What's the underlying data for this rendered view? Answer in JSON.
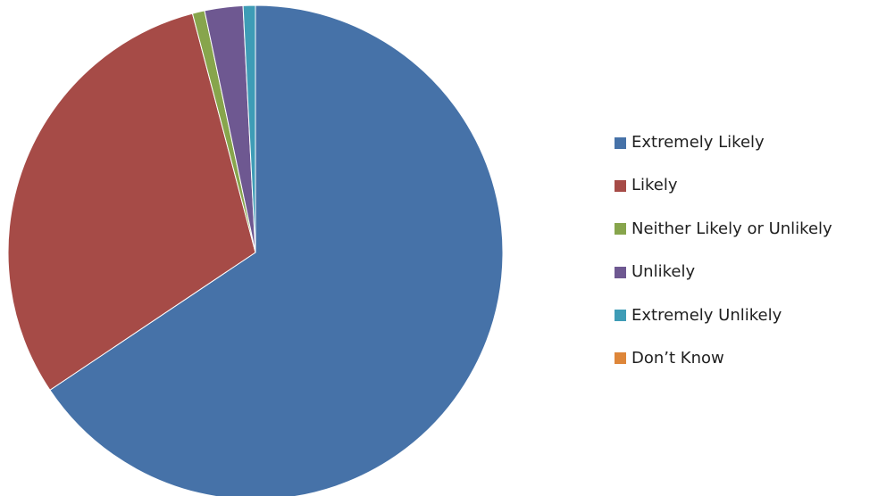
{
  "chart_data": {
    "type": "pie",
    "title": "",
    "categories": [
      "Extremely Likely",
      "Likely",
      "Neither Likely or Unlikely",
      "Unlikely",
      "Extremely Unlikely",
      "Don’t Know"
    ],
    "values": [
      65.6,
      30.3,
      0.8,
      2.5,
      0.8,
      0.0
    ],
    "colors": [
      "#4672A8",
      "#A64B47",
      "#87A54C",
      "#6E5891",
      "#3E9CB6",
      "#DE8639"
    ],
    "legend_position": "right",
    "start_angle_deg": 0,
    "direction": "clockwise"
  }
}
